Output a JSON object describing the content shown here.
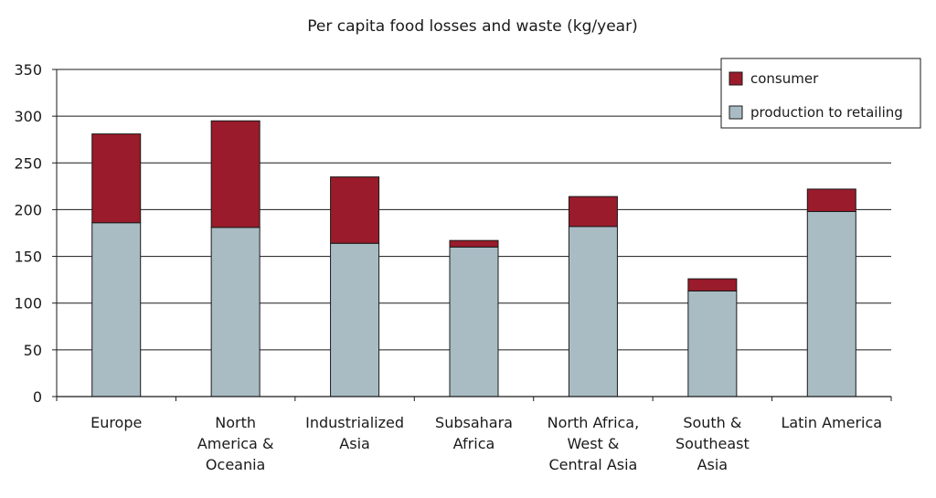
{
  "chart_data": {
    "type": "bar",
    "stacked": true,
    "title": "Per capita food losses and waste (kg/year)",
    "xlabel": "",
    "ylabel": "",
    "ylim": [
      0,
      350
    ],
    "yticks": [
      0,
      50,
      100,
      150,
      200,
      250,
      300,
      350
    ],
    "grid": true,
    "legend_position": "top-right",
    "categories": [
      [
        "Europe"
      ],
      [
        "North",
        "America &",
        "Oceania"
      ],
      [
        "Industrialized",
        "Asia"
      ],
      [
        "Subsahara",
        "Africa"
      ],
      [
        "North Africa,",
        "West &",
        "Central Asia"
      ],
      [
        "South &",
        "Southeast",
        "Asia"
      ],
      [
        "Latin America"
      ]
    ],
    "series": [
      {
        "name": "production to retailing",
        "color": "#a9bcc4",
        "values": [
          186,
          181,
          164,
          160,
          182,
          113,
          198
        ]
      },
      {
        "name": "consumer",
        "color": "#9a1b2b",
        "values": [
          95,
          114,
          71,
          7,
          32,
          13,
          24
        ]
      }
    ],
    "legend_order": [
      "consumer",
      "production to retailing"
    ]
  }
}
